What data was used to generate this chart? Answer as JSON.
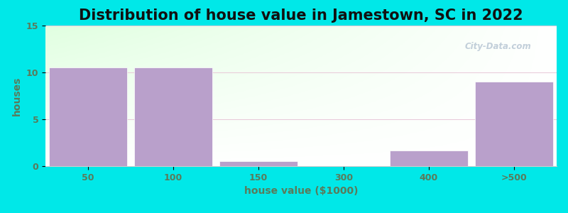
{
  "title": "Distribution of house value in Jamestown, SC in 2022",
  "xlabel": "house value ($1000)",
  "ylabel": "houses",
  "categories": [
    "50",
    "100",
    "150",
    "300",
    "400",
    ">500"
  ],
  "values": [
    10.5,
    10.5,
    0.5,
    0,
    1.7,
    9.0
  ],
  "bar_color": "#b9a0cb",
  "bar_edge_color": "#ffffff",
  "ylim": [
    0,
    15
  ],
  "yticks": [
    0,
    5,
    10,
    15
  ],
  "background_outer": "#00e8e8",
  "grad_color_topleft": "#d8f5d8",
  "grad_color_bottomright": "#ffffff",
  "title_fontsize": 15,
  "axis_label_fontsize": 10,
  "tick_fontsize": 9,
  "title_color": "#111111",
  "label_color": "#5a7a5a",
  "tick_color": "#5a7a5a",
  "watermark": "City-Data.com",
  "grid_color": "#e8c8d8",
  "spine_color": "#cccccc"
}
